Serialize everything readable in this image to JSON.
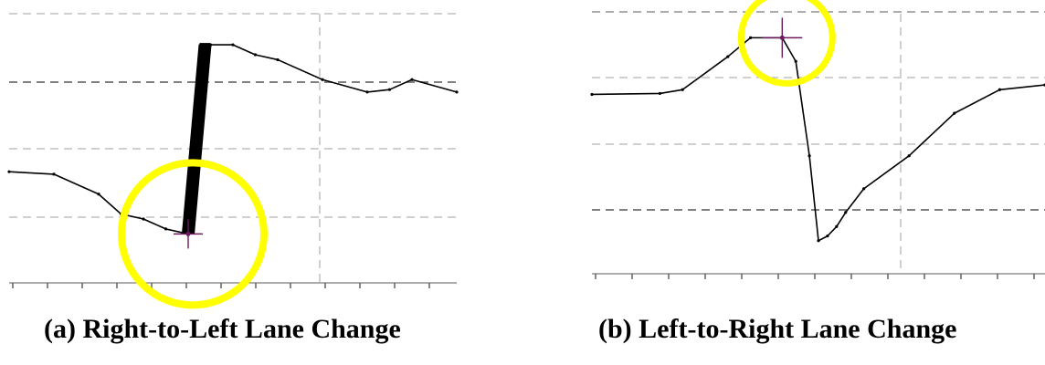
{
  "panels": [
    {
      "caption": "(a) Right-to-Left Lane Change"
    },
    {
      "caption": "(b) Left-to-Right Lane Change"
    }
  ],
  "chart_data": [
    {
      "type": "line",
      "title": "",
      "xlabel": "",
      "ylabel": "",
      "grid": true,
      "description_tags": [
        "lane-change trajectory",
        "highlighted start point"
      ],
      "series": [
        {
          "name": "",
          "x": [
            0,
            10,
            20,
            25,
            30,
            35,
            40,
            45,
            50,
            55,
            60,
            70,
            80,
            85,
            90,
            100
          ],
          "y": [
            0.05,
            0.0,
            -0.4,
            -0.8,
            -0.9,
            -1.1,
            -1.2,
            2.6,
            2.6,
            2.4,
            2.3,
            1.9,
            1.65,
            1.7,
            1.9,
            1.65
          ]
        }
      ],
      "marker": {
        "x": 40,
        "y": -1.2,
        "highlight": "yellow circle"
      },
      "colors": {
        "series": "#000000",
        "highlight": "#ffff00",
        "marker": "#6b1a5e",
        "grid": "#808080"
      }
    },
    {
      "type": "line",
      "title": "",
      "xlabel": "",
      "ylabel": "",
      "grid": true,
      "description_tags": [
        "lane-change trajectory",
        "highlighted start point"
      ],
      "series": [
        {
          "name": "",
          "x": [
            0,
            15,
            20,
            30,
            35,
            42,
            45,
            48,
            50,
            52,
            54,
            56,
            60,
            70,
            80,
            90,
            100
          ],
          "y": [
            -0.2,
            -0.18,
            -0.1,
            0.6,
            1.0,
            1.0,
            0.5,
            -1.5,
            -3.3,
            -3.2,
            -3.0,
            -2.7,
            -2.2,
            -1.5,
            -0.6,
            -0.1,
            0.0
          ]
        }
      ],
      "marker": {
        "x": 42,
        "y": 1.0,
        "highlight": "yellow circle"
      },
      "colors": {
        "series": "#000000",
        "highlight": "#ffff00",
        "marker": "#6b1a5e",
        "grid": "#808080"
      }
    }
  ]
}
